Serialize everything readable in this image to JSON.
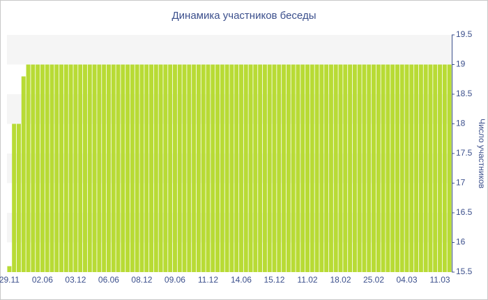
{
  "chart_data": {
    "type": "bar",
    "title": "Динамика участников беседы",
    "y_label": "Число участников",
    "categories": [
      "29.11",
      null,
      null,
      null,
      null,
      null,
      null,
      "02.06",
      null,
      null,
      null,
      null,
      null,
      null,
      "03.12",
      null,
      null,
      null,
      null,
      null,
      null,
      "06.06",
      null,
      null,
      null,
      null,
      null,
      null,
      "08.12",
      null,
      null,
      null,
      null,
      null,
      null,
      "09.06",
      null,
      null,
      null,
      null,
      null,
      null,
      "11.12",
      null,
      null,
      null,
      null,
      null,
      null,
      "14.06",
      null,
      null,
      null,
      null,
      null,
      null,
      "15.12",
      null,
      null,
      null,
      null,
      null,
      null,
      "11.02",
      null,
      null,
      null,
      null,
      null,
      null,
      "18.02",
      null,
      null,
      null,
      null,
      null,
      null,
      "25.02",
      null,
      null,
      null,
      null,
      null,
      null,
      "04.03",
      null,
      null,
      null,
      null,
      null,
      null,
      "11.03",
      null,
      null
    ],
    "values": [
      15.6,
      18,
      18,
      18.8,
      19,
      19,
      19,
      19,
      19,
      19,
      19,
      19,
      19,
      19,
      19,
      19,
      19,
      19,
      19,
      19,
      19,
      19,
      19,
      19,
      19,
      19,
      19,
      19,
      19,
      19,
      19,
      19,
      19,
      19,
      19,
      19,
      19,
      19,
      19,
      19,
      19,
      19,
      19,
      19,
      19,
      19,
      19,
      19,
      19,
      19,
      19,
      19,
      19,
      19,
      19,
      19,
      19,
      19,
      19,
      19,
      19,
      19,
      19,
      19,
      19,
      19,
      19,
      19,
      19,
      19,
      19,
      19,
      19,
      19,
      19,
      19,
      19,
      19,
      19,
      19,
      19,
      19,
      19,
      19,
      19,
      19,
      19,
      19,
      19,
      19,
      19,
      19,
      19,
      19
    ],
    "color": "#b8db35",
    "ylim": [
      15.5,
      19.5
    ],
    "yticks": [
      15.5,
      16,
      16.5,
      17,
      17.5,
      18,
      18.5,
      19,
      19.5
    ],
    "grid_bands": true
  }
}
